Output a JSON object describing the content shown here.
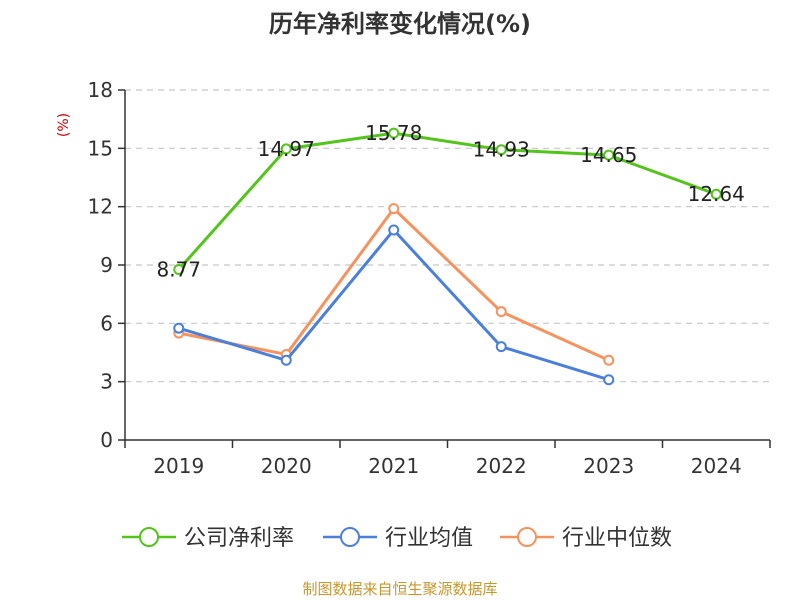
{
  "chart_data": {
    "type": "line",
    "title": "历年净利率变化情况(%)",
    "ylabel": "(%)",
    "xlabel": "",
    "categories": [
      "2019",
      "2020",
      "2021",
      "2022",
      "2023",
      "2024"
    ],
    "ylim": [
      0,
      18
    ],
    "yticks": [
      0,
      3,
      6,
      9,
      12,
      15,
      18
    ],
    "grid": true,
    "legend_position": "bottom",
    "source": "制图数据来自恒生聚源数据库",
    "series": [
      {
        "name": "公司净利率",
        "color": "#52c41a",
        "values": [
          8.77,
          14.97,
          15.78,
          14.93,
          14.65,
          12.64
        ],
        "labels": [
          "8.77",
          "14.97",
          "15.78",
          "14.93",
          "14.65",
          "12.64"
        ]
      },
      {
        "name": "行业均值",
        "color": "#4a7fdc",
        "values": [
          5.75,
          4.1,
          10.8,
          4.8,
          3.1,
          null
        ]
      },
      {
        "name": "行业中位数",
        "color": "#f5925e",
        "values": [
          5.5,
          4.4,
          11.9,
          6.6,
          4.1,
          null
        ]
      }
    ]
  }
}
